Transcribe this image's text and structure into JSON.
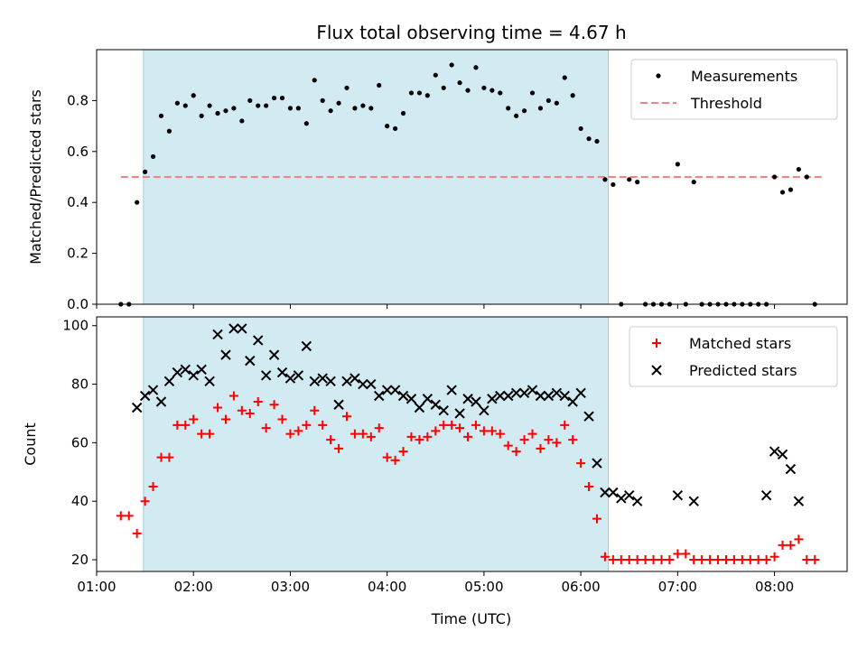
{
  "chart_data": {
    "type": "scatter",
    "title": "Flux total observing time = 4.67 h",
    "xlabel": "Time (UTC)",
    "xlim": [
      "01:00",
      "08:45"
    ],
    "x_ticks": [
      "01:00",
      "02:00",
      "03:00",
      "04:00",
      "05:00",
      "06:00",
      "07:00",
      "08:00"
    ],
    "shaded_interval": [
      "01:29",
      "06:17"
    ],
    "colors": {
      "shade": "#add8e6",
      "measurements": "#000000",
      "threshold": "#ff7f7f",
      "matched": "#ff0000",
      "predicted": "#000000"
    },
    "panels": [
      {
        "ylabel": "Matched/Predicted stars",
        "ylim": [
          0,
          1.0
        ],
        "y_ticks": [
          "0.0",
          "0.2",
          "0.4",
          "0.6",
          "0.8"
        ],
        "y_tick_values": [
          0,
          0.2,
          0.4,
          0.6,
          0.8
        ],
        "legend": [
          "Measurements",
          "Threshold"
        ],
        "threshold": {
          "value": 0.5,
          "x_range": [
            "01:15",
            "08:30"
          ]
        },
        "series": [
          {
            "name": "Measurements",
            "marker": "dot",
            "x": [
              "01:15",
              "01:20",
              "01:25",
              "01:30",
              "01:35",
              "01:40",
              "01:45",
              "01:50",
              "01:55",
              "02:00",
              "02:05",
              "02:10",
              "02:15",
              "02:20",
              "02:25",
              "02:30",
              "02:35",
              "02:40",
              "02:45",
              "02:50",
              "02:55",
              "03:00",
              "03:05",
              "03:10",
              "03:15",
              "03:20",
              "03:25",
              "03:30",
              "03:35",
              "03:40",
              "03:45",
              "03:50",
              "03:55",
              "04:00",
              "04:05",
              "04:10",
              "04:15",
              "04:20",
              "04:25",
              "04:30",
              "04:35",
              "04:40",
              "04:45",
              "04:50",
              "04:55",
              "05:00",
              "05:05",
              "05:10",
              "05:15",
              "05:20",
              "05:25",
              "05:30",
              "05:35",
              "05:40",
              "05:45",
              "05:50",
              "05:55",
              "06:00",
              "06:05",
              "06:10",
              "06:15",
              "06:20",
              "06:25",
              "06:30",
              "06:35",
              "06:40",
              "06:45",
              "06:50",
              "06:55",
              "07:00",
              "07:05",
              "07:10",
              "07:15",
              "07:20",
              "07:25",
              "07:30",
              "07:35",
              "07:40",
              "07:45",
              "07:50",
              "07:55",
              "08:00",
              "08:05",
              "08:10",
              "08:15",
              "08:20",
              "08:25"
            ],
            "y": [
              0.0,
              0.0,
              0.4,
              0.52,
              0.58,
              0.74,
              0.68,
              0.79,
              0.78,
              0.82,
              0.74,
              0.78,
              0.75,
              0.76,
              0.77,
              0.72,
              0.8,
              0.78,
              0.78,
              0.81,
              0.81,
              0.77,
              0.77,
              0.71,
              0.88,
              0.8,
              0.76,
              0.79,
              0.85,
              0.77,
              0.78,
              0.77,
              0.86,
              0.7,
              0.69,
              0.75,
              0.83,
              0.83,
              0.82,
              0.9,
              0.85,
              0.94,
              0.87,
              0.84,
              0.93,
              0.85,
              0.84,
              0.83,
              0.77,
              0.74,
              0.76,
              0.83,
              0.77,
              0.8,
              0.79,
              0.89,
              0.82,
              0.69,
              0.65,
              0.64,
              0.49,
              0.47,
              0.0,
              0.49,
              0.48,
              0.0,
              0.0,
              0.0,
              0.0,
              0.55,
              0.0,
              0.48,
              0.0,
              0.0,
              0.0,
              0.0,
              0.0,
              0.0,
              0.0,
              0.0,
              0.0,
              0.5,
              0.44,
              0.45,
              0.53,
              0.5,
              0.0
            ]
          }
        ]
      },
      {
        "ylabel": "Count",
        "ylim": [
          16,
          103
        ],
        "y_ticks": [
          "20",
          "40",
          "60",
          "80",
          "100"
        ],
        "y_tick_values": [
          20,
          40,
          60,
          80,
          100
        ],
        "legend": [
          "Matched stars",
          "Predicted stars"
        ],
        "series": [
          {
            "name": "Matched stars",
            "marker": "plus",
            "x": [
              "01:15",
              "01:20",
              "01:25",
              "01:30",
              "01:35",
              "01:40",
              "01:45",
              "01:50",
              "01:55",
              "02:00",
              "02:05",
              "02:10",
              "02:15",
              "02:20",
              "02:25",
              "02:30",
              "02:35",
              "02:40",
              "02:45",
              "02:50",
              "02:55",
              "03:00",
              "03:05",
              "03:10",
              "03:15",
              "03:20",
              "03:25",
              "03:30",
              "03:35",
              "03:40",
              "03:45",
              "03:50",
              "03:55",
              "04:00",
              "04:05",
              "04:10",
              "04:15",
              "04:20",
              "04:25",
              "04:30",
              "04:35",
              "04:40",
              "04:45",
              "04:50",
              "04:55",
              "05:00",
              "05:05",
              "05:10",
              "05:15",
              "05:20",
              "05:25",
              "05:30",
              "05:35",
              "05:40",
              "05:45",
              "05:50",
              "05:55",
              "06:00",
              "06:05",
              "06:10",
              "06:15",
              "06:20",
              "06:25",
              "06:30",
              "06:35",
              "06:40",
              "06:45",
              "06:50",
              "06:55",
              "07:00",
              "07:05",
              "07:10",
              "07:15",
              "07:20",
              "07:25",
              "07:30",
              "07:35",
              "07:40",
              "07:45",
              "07:50",
              "07:55",
              "08:00",
              "08:05",
              "08:10",
              "08:15",
              "08:20",
              "08:25"
            ],
            "y": [
              35,
              35,
              29,
              40,
              45,
              55,
              55,
              66,
              66,
              68,
              63,
              63,
              72,
              68,
              76,
              71,
              70,
              74,
              65,
              73,
              68,
              63,
              64,
              66,
              71,
              66,
              61,
              58,
              69,
              63,
              63,
              62,
              65,
              55,
              54,
              57,
              62,
              61,
              62,
              64,
              66,
              66,
              65,
              62,
              66,
              64,
              64,
              63,
              59,
              57,
              61,
              63,
              58,
              61,
              60,
              66,
              61,
              53,
              45,
              34,
              21,
              20,
              20,
              20,
              20,
              20,
              20,
              20,
              20,
              22,
              22,
              20,
              20,
              20,
              20,
              20,
              20,
              20,
              20,
              20,
              20,
              21,
              25,
              25,
              27,
              20,
              20
            ]
          },
          {
            "name": "Predicted stars",
            "marker": "x",
            "x": [
              "01:25",
              "01:30",
              "01:35",
              "01:40",
              "01:45",
              "01:50",
              "01:55",
              "02:00",
              "02:05",
              "02:10",
              "02:15",
              "02:20",
              "02:25",
              "02:30",
              "02:35",
              "02:40",
              "02:45",
              "02:50",
              "02:55",
              "03:00",
              "03:05",
              "03:10",
              "03:15",
              "03:20",
              "03:25",
              "03:30",
              "03:35",
              "03:40",
              "03:45",
              "03:50",
              "03:55",
              "04:00",
              "04:05",
              "04:10",
              "04:15",
              "04:20",
              "04:25",
              "04:30",
              "04:35",
              "04:40",
              "04:45",
              "04:50",
              "04:55",
              "05:00",
              "05:05",
              "05:10",
              "05:15",
              "05:20",
              "05:25",
              "05:30",
              "05:35",
              "05:40",
              "05:45",
              "05:50",
              "05:55",
              "06:00",
              "06:05",
              "06:10",
              "06:15",
              "06:20",
              "06:25",
              "06:30",
              "06:35",
              "07:00",
              "07:10",
              "07:55",
              "08:00",
              "08:05",
              "08:10",
              "08:15"
            ],
            "y": [
              72,
              76,
              78,
              74,
              81,
              84,
              85,
              83,
              85,
              81,
              97,
              90,
              99,
              99,
              88,
              95,
              83,
              90,
              84,
              82,
              83,
              93,
              81,
              82,
              81,
              73,
              81,
              82,
              80,
              80,
              76,
              78,
              78,
              76,
              75,
              72,
              75,
              73,
              71,
              78,
              70,
              75,
              74,
              71,
              75,
              76,
              76,
              77,
              77,
              78,
              76,
              76,
              77,
              76,
              74,
              77,
              69,
              53,
              43,
              43,
              41,
              42,
              40,
              42,
              40,
              42,
              57,
              56,
              51,
              40
            ]
          }
        ]
      }
    ]
  }
}
